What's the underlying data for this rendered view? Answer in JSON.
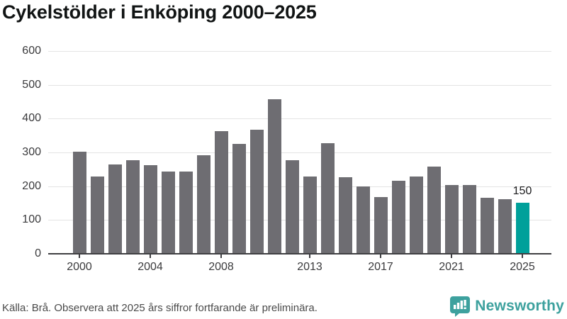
{
  "title": "Cykelstölder i Enköping 2000–2025",
  "footer": {
    "source_note": "Källa: Brå. Observera att 2025 års siffror fortfarande är preliminära.",
    "brand": "Newsworthy"
  },
  "colors": {
    "bar": "#6e6d72",
    "highlight": "#00a09a",
    "grid": "#e4e4e4",
    "axis": "#3f3f42",
    "brand_teal": "#3da19e",
    "title_text": "#111414",
    "axis_text": "#3a3a3c",
    "source_text": "#4a4a4a"
  },
  "chart_data": {
    "type": "bar",
    "title": "Cykelstölder i Enköping 2000–2025",
    "categories": [
      2000,
      2001,
      2002,
      2003,
      2004,
      2005,
      2006,
      2007,
      2008,
      2009,
      2010,
      2011,
      2012,
      2013,
      2014,
      2015,
      2016,
      2017,
      2018,
      2019,
      2020,
      2021,
      2022,
      2023,
      2024,
      2025
    ],
    "values": [
      300,
      227,
      262,
      274,
      260,
      241,
      241,
      290,
      360,
      323,
      365,
      455,
      274,
      227,
      325,
      225,
      198,
      166,
      214,
      227,
      255,
      202,
      202,
      163,
      160,
      150
    ],
    "highlight_category": 2025,
    "highlight_value_label": "150",
    "x_tick_labels": [
      "2000",
      "2004",
      "2008",
      "2013",
      "2017",
      "2021",
      "2025"
    ],
    "y_ticks": [
      0,
      100,
      200,
      300,
      400,
      500,
      600
    ],
    "ylim": [
      0,
      600
    ],
    "xlabel": "",
    "ylabel": "",
    "grid": true,
    "legend": false
  }
}
